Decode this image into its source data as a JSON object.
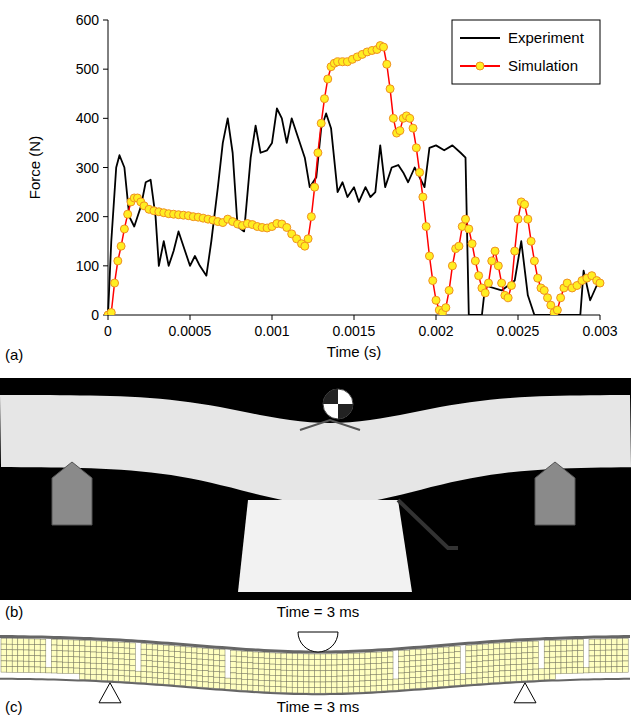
{
  "chart_data": {
    "type": "line",
    "x_label": "Time (s)",
    "y_label": "Force (N)",
    "xlim": [
      0,
      0.003
    ],
    "xticks": [
      0,
      0.0005,
      0.001,
      0.0015,
      0.002,
      0.0025,
      0.003
    ],
    "ylim": [
      0,
      600
    ],
    "yticks": [
      0,
      100,
      200,
      300,
      400,
      500,
      600
    ],
    "grid": false,
    "legend": "top-right",
    "series": [
      {
        "name": "Experiment",
        "color": "#000000",
        "marker": "none",
        "x": [
          0,
          2e-05,
          5e-05,
          7e-05,
          0.0001,
          0.00013,
          0.00016,
          0.0002,
          0.00023,
          0.00026,
          0.00029,
          0.00031,
          0.00034,
          0.00037,
          0.0004,
          0.00043,
          0.00046,
          0.0005,
          0.00053,
          0.00056,
          0.0006,
          0.00063,
          0.00067,
          0.0007,
          0.00073,
          0.00076,
          0.00079,
          0.00083,
          0.00087,
          0.0009,
          0.00093,
          0.00097,
          0.001,
          0.00103,
          0.00106,
          0.00109,
          0.00112,
          0.00116,
          0.0012,
          0.00123,
          0.00127,
          0.0013,
          0.00133,
          0.00136,
          0.0014,
          0.00143,
          0.00146,
          0.0015,
          0.00153,
          0.00157,
          0.0016,
          0.00163,
          0.00166,
          0.00169,
          0.00173,
          0.00177,
          0.0018,
          0.00183,
          0.00187,
          0.0019,
          0.00193,
          0.00196,
          0.002,
          0.00205,
          0.0021,
          0.00215,
          0.00218,
          0.0022,
          0.00228,
          0.0023,
          0.0024,
          0.00248,
          0.00252,
          0.00256,
          0.0026,
          0.0027,
          0.00288,
          0.0029,
          0.00294,
          0.00298,
          0.003
        ],
        "values": [
          0,
          150,
          300,
          325,
          300,
          200,
          180,
          220,
          270,
          275,
          200,
          100,
          150,
          100,
          130,
          170,
          140,
          100,
          120,
          100,
          80,
          150,
          260,
          350,
          400,
          330,
          180,
          170,
          320,
          385,
          330,
          335,
          350,
          420,
          400,
          350,
          400,
          360,
          320,
          260,
          280,
          380,
          410,
          380,
          250,
          270,
          240,
          260,
          230,
          260,
          240,
          250,
          345,
          260,
          300,
          305,
          290,
          270,
          300,
          280,
          260,
          340,
          345,
          335,
          345,
          330,
          320,
          0,
          0,
          60,
          50,
          70,
          150,
          40,
          0,
          0,
          0,
          90,
          30,
          60,
          60
        ]
      },
      {
        "name": "Simulation",
        "color": "#ff0000",
        "marker": "circle",
        "x": [
          0,
          2e-05,
          4e-05,
          6e-05,
          8e-05,
          0.0001,
          0.00012,
          0.00014,
          0.00016,
          0.00018,
          0.0002,
          0.00022,
          0.00025,
          0.00028,
          0.00031,
          0.00034,
          0.00037,
          0.0004,
          0.00043,
          0.00046,
          0.00049,
          0.00052,
          0.00055,
          0.00058,
          0.00061,
          0.00064,
          0.00067,
          0.0007,
          0.00073,
          0.00076,
          0.00079,
          0.00082,
          0.00085,
          0.00088,
          0.00091,
          0.00094,
          0.00097,
          0.001,
          0.00103,
          0.00106,
          0.00109,
          0.00112,
          0.00115,
          0.00118,
          0.0012,
          0.00122,
          0.00124,
          0.00126,
          0.00128,
          0.0013,
          0.00132,
          0.00134,
          0.00136,
          0.00138,
          0.0014,
          0.00143,
          0.00146,
          0.00149,
          0.00152,
          0.00155,
          0.00158,
          0.00161,
          0.00164,
          0.00166,
          0.00168,
          0.0017,
          0.00172,
          0.00174,
          0.00176,
          0.00178,
          0.0018,
          0.00182,
          0.00184,
          0.00186,
          0.00188,
          0.0019,
          0.00192,
          0.00194,
          0.00196,
          0.00198,
          0.002,
          0.00202,
          0.00204,
          0.00206,
          0.00208,
          0.0021,
          0.00212,
          0.00214,
          0.00216,
          0.00218,
          0.0022,
          0.00222,
          0.00224,
          0.00226,
          0.00228,
          0.0023,
          0.00232,
          0.00234,
          0.00236,
          0.00238,
          0.0024,
          0.00242,
          0.00244,
          0.00246,
          0.00248,
          0.0025,
          0.00252,
          0.00254,
          0.00256,
          0.00258,
          0.0026,
          0.00262,
          0.00264,
          0.00266,
          0.00268,
          0.0027,
          0.00272,
          0.00274,
          0.00276,
          0.00278,
          0.0028,
          0.00283,
          0.00286,
          0.00289,
          0.00292,
          0.00295,
          0.00298,
          0.003
        ],
        "values": [
          0,
          5,
          65,
          110,
          140,
          175,
          205,
          230,
          238,
          238,
          230,
          222,
          215,
          212,
          210,
          208,
          206,
          205,
          204,
          203,
          202,
          200,
          199,
          197,
          195,
          193,
          190,
          188,
          195,
          190,
          185,
          182,
          186,
          184,
          180,
          178,
          177,
          180,
          186,
          185,
          178,
          165,
          155,
          145,
          140,
          155,
          200,
          260,
          330,
          390,
          440,
          480,
          505,
          512,
          515,
          515,
          515,
          520,
          525,
          530,
          535,
          538,
          540,
          548,
          545,
          510,
          460,
          400,
          370,
          375,
          400,
          405,
          400,
          380,
          340,
          290,
          240,
          180,
          120,
          70,
          30,
          10,
          5,
          15,
          50,
          100,
          135,
          140,
          180,
          195,
          175,
          145,
          110,
          80,
          55,
          45,
          65,
          110,
          130,
          100,
          65,
          40,
          35,
          60,
          130,
          195,
          230,
          225,
          195,
          150,
          110,
          75,
          55,
          50,
          35,
          20,
          5,
          10,
          35,
          55,
          65,
          55,
          60,
          70,
          75,
          80,
          70,
          65
        ]
      }
    ]
  },
  "panels": [
    {
      "label": "(a)"
    },
    {
      "label": "(b)",
      "caption": "Time = 3 ms"
    },
    {
      "label": "(c)",
      "caption": "Time = 3 ms"
    }
  ]
}
